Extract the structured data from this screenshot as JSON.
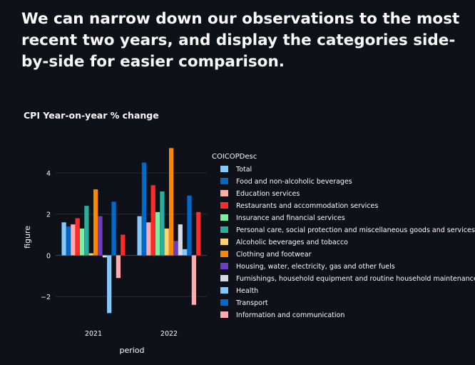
{
  "page": {
    "headline": "We can narrow down our observations to the most recent two years, and display the categories side-by-side for easier comparison."
  },
  "chart_data": {
    "type": "bar",
    "title": "CPI Year-on-year % change",
    "xlabel": "period",
    "ylabel": "figure",
    "categories": [
      "2021",
      "2022"
    ],
    "ylim": [
      -3.1,
      5.8
    ],
    "yticks": [
      -2,
      0,
      2,
      4
    ],
    "ytick_labels": [
      "−2",
      "0",
      "2",
      "4"
    ],
    "grid": true,
    "legend_title": "COICOPDesc",
    "legend_position": "right",
    "series": [
      {
        "name": "Total",
        "color": "#83c9ff",
        "values": [
          1.6,
          1.9
        ]
      },
      {
        "name": "Food and non-alcoholic beverages",
        "color": "#0068c9",
        "values": [
          1.4,
          4.5
        ]
      },
      {
        "name": "Education services",
        "color": "#ffabab",
        "values": [
          1.5,
          1.6
        ]
      },
      {
        "name": "Restaurants and accommodation services",
        "color": "#ff2b2b",
        "values": [
          1.8,
          3.4
        ]
      },
      {
        "name": "Insurance and financial services",
        "color": "#7defa1",
        "values": [
          1.3,
          2.1
        ]
      },
      {
        "name": "Personal care, social protection and miscellaneous goods and services",
        "color": "#29b09d",
        "values": [
          2.4,
          3.1
        ]
      },
      {
        "name": "Alcoholic beverages and tobacco",
        "color": "#ffd16a",
        "values": [
          0.1,
          1.3
        ]
      },
      {
        "name": "Clothing and footwear",
        "color": "#ff8700",
        "values": [
          3.2,
          5.2
        ]
      },
      {
        "name": "Housing, water, electricity, gas and other fuels",
        "color": "#6d3fc0",
        "values": [
          1.9,
          0.7
        ]
      },
      {
        "name": "Furnishings, household equipment and routine household maintenance",
        "color": "#d5dae5",
        "values": [
          -0.1,
          1.5
        ]
      },
      {
        "name": "Health",
        "color": "#83c9ff",
        "values": [
          -2.8,
          0.3
        ]
      },
      {
        "name": "Transport",
        "color": "#0068c9",
        "values": [
          2.6,
          2.9
        ]
      },
      {
        "name": "Information and communication",
        "color": "#ffabab",
        "values": [
          -1.1,
          -2.4
        ]
      },
      {
        "name": "",
        "color": "#ff2b2b",
        "values": [
          1.0,
          2.1
        ]
      }
    ]
  }
}
